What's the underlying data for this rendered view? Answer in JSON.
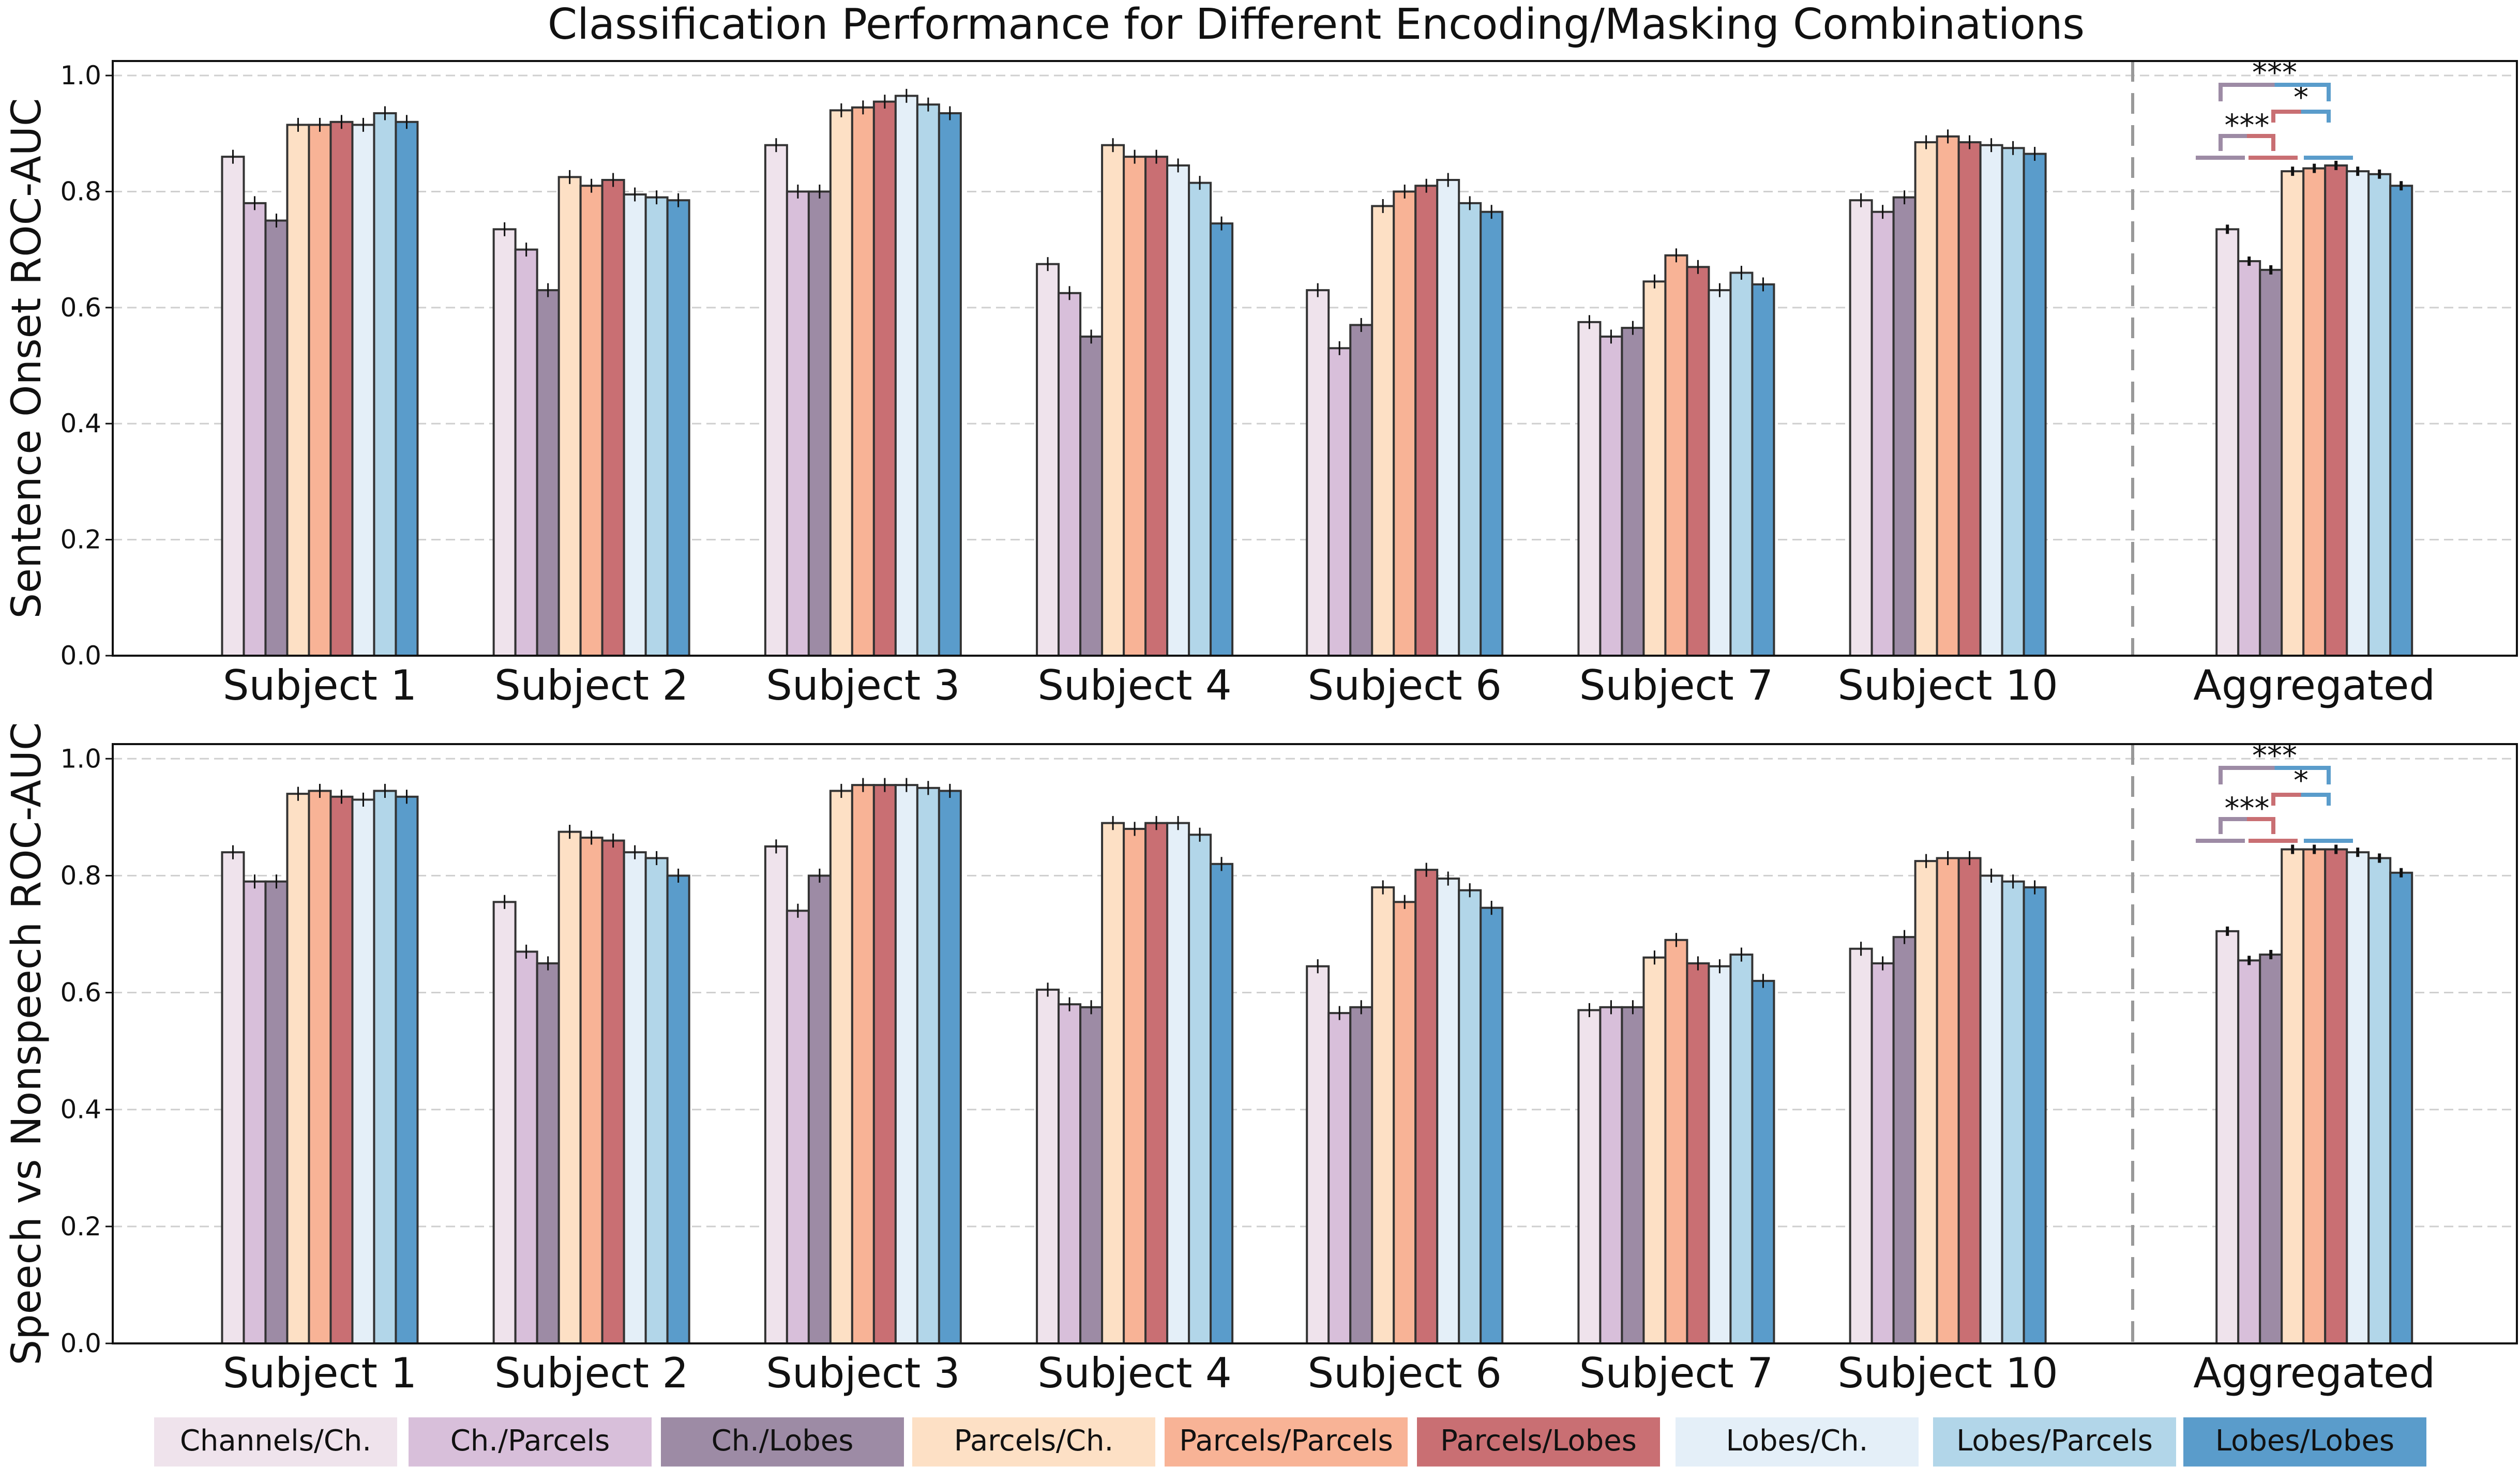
{
  "chart_data": {
    "type": "bar",
    "title": "Classification Performance for Different Encoding/Masking Combinations",
    "categories": [
      "Subject 1",
      "Subject 2",
      "Subject 3",
      "Subject 4",
      "Subject 6",
      "Subject 7",
      "Subject 10",
      "Aggregated"
    ],
    "legend": {
      "placement": "bottom",
      "entries": [
        "Channels/Ch.",
        "Ch./Parcels",
        "Ch./Lobes",
        "Parcels/Ch.",
        "Parcels/Parcels",
        "Parcels/Lobes",
        "Lobes/Ch.",
        "Lobes/Parcels",
        "Lobes/Lobes"
      ]
    },
    "colors": [
      "#efe3ec",
      "#d8bfda",
      "#9d8ba5",
      "#fde0c5",
      "#f8b396",
      "#c96f73",
      "#e4eff8",
      "#b2d6e9",
      "#5a9ccb"
    ],
    "grid": true,
    "ylim": [
      0,
      1.025
    ],
    "yticks": [
      "0.0",
      "0.2",
      "0.4",
      "0.6",
      "0.8",
      "1.0"
    ],
    "panels": [
      {
        "ylabel": "Sentence Onset ROC-AUC",
        "values": [
          [
            0.86,
            0.78,
            0.75,
            0.915,
            0.915,
            0.92,
            0.915,
            0.935,
            0.92
          ],
          [
            0.735,
            0.7,
            0.63,
            0.825,
            0.81,
            0.82,
            0.795,
            0.79,
            0.785
          ],
          [
            0.88,
            0.8,
            0.8,
            0.94,
            0.945,
            0.955,
            0.965,
            0.95,
            0.935
          ],
          [
            0.675,
            0.625,
            0.55,
            0.88,
            0.86,
            0.86,
            0.845,
            0.815,
            0.745
          ],
          [
            0.63,
            0.53,
            0.57,
            0.775,
            0.8,
            0.81,
            0.82,
            0.78,
            0.765
          ],
          [
            0.575,
            0.55,
            0.565,
            0.645,
            0.69,
            0.67,
            0.63,
            0.66,
            0.64
          ],
          [
            0.785,
            0.765,
            0.79,
            0.885,
            0.895,
            0.885,
            0.88,
            0.875,
            0.865
          ],
          [
            0.735,
            0.68,
            0.665,
            0.835,
            0.84,
            0.845,
            0.835,
            0.83,
            0.81
          ]
        ],
        "significance": [
          "***",
          "*",
          "***"
        ]
      },
      {
        "ylabel": "Speech vs Nonspeech ROC-AUC",
        "values": [
          [
            0.84,
            0.79,
            0.79,
            0.94,
            0.945,
            0.935,
            0.93,
            0.945,
            0.935
          ],
          [
            0.755,
            0.67,
            0.65,
            0.875,
            0.865,
            0.86,
            0.84,
            0.83,
            0.8
          ],
          [
            0.85,
            0.74,
            0.8,
            0.945,
            0.955,
            0.955,
            0.955,
            0.95,
            0.945
          ],
          [
            0.605,
            0.58,
            0.575,
            0.89,
            0.88,
            0.89,
            0.89,
            0.87,
            0.82
          ],
          [
            0.645,
            0.565,
            0.575,
            0.78,
            0.755,
            0.81,
            0.795,
            0.775,
            0.745
          ],
          [
            0.57,
            0.575,
            0.575,
            0.66,
            0.69,
            0.65,
            0.645,
            0.665,
            0.62
          ],
          [
            0.675,
            0.65,
            0.695,
            0.825,
            0.83,
            0.83,
            0.8,
            0.79,
            0.78
          ],
          [
            0.705,
            0.655,
            0.665,
            0.845,
            0.845,
            0.845,
            0.84,
            0.83,
            0.805
          ]
        ],
        "significance": [
          "***",
          "*",
          "***"
        ]
      }
    ]
  }
}
